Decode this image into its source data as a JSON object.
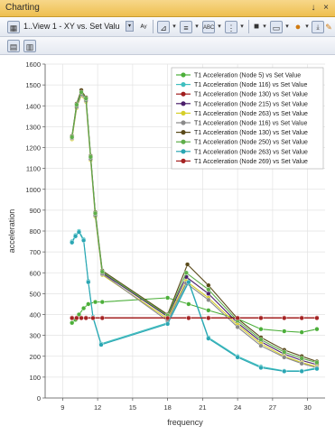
{
  "window": {
    "title": "Charting",
    "pin_glyph": "↓",
    "close_glyph": "×"
  },
  "toolbar": {
    "view_select_value": "1..View 1 - XY vs. Set Valu",
    "view_select_arrow": "▾"
  },
  "icons": [
    "chart-settings-icon",
    "view-select",
    "axis-format-icon",
    "series-icon",
    "label-icon",
    "grid-icon",
    "marker-icon",
    "frame-icon",
    "color-icon",
    "range-icon",
    "export-icon",
    "copy-chart-icon",
    "edit-chart-icon"
  ],
  "colors": {
    "green": "#4caf3a",
    "cyan": "#3fbfbf",
    "darkred": "#a11d1d",
    "purple": "#4b1f6b",
    "yellow": "#d6cf29",
    "gray": "#8a8a8a",
    "brown": "#5a4a1a",
    "lightgreen": "#5fae4a",
    "darkcyan": "#2aa6b3",
    "red": "#a52323"
  },
  "chart_data": {
    "type": "line",
    "xlabel": "frequency",
    "ylabel": "acceleration",
    "xlim": [
      7.5,
      31.5
    ],
    "ylim": [
      0,
      1600
    ],
    "xticks": [
      9,
      12,
      15,
      18,
      21,
      24,
      27,
      30
    ],
    "yticks": [
      0,
      100,
      200,
      300,
      400,
      500,
      600,
      700,
      800,
      900,
      1000,
      1100,
      1200,
      1300,
      1400,
      1500,
      1600
    ],
    "grid": true,
    "legend_position": "top-right",
    "series": [
      {
        "name": "T1 Acceleration (Node 5) vs Set Value",
        "color": "#4caf3a",
        "x": [
          9.8,
          10.1,
          10.4,
          10.8,
          11.2,
          11.8,
          12.4,
          18,
          19.8,
          21.5,
          24,
          26,
          28,
          29.5,
          30.8
        ],
        "y": [
          360,
          375,
          400,
          430,
          450,
          460,
          460,
          480,
          450,
          420,
          380,
          330,
          320,
          315,
          330
        ]
      },
      {
        "name": "T1 Acceleration (Node 116) vs Set Value",
        "color": "#3fbfbf",
        "x": [
          9.8,
          10.1,
          10.4,
          10.8,
          11.2,
          11.6,
          12.3,
          18,
          19.8,
          21.5,
          24,
          26,
          28,
          29.5,
          30.8
        ],
        "y": [
          750,
          780,
          800,
          760,
          560,
          390,
          260,
          360,
          560,
          290,
          200,
          150,
          130,
          130,
          145
        ]
      },
      {
        "name": "T1 Acceleration (Node 130) vs Set Value",
        "color": "#a11d1d",
        "x": [
          9.8,
          10.2,
          10.6,
          11,
          11.6,
          12.4,
          18,
          19.8,
          21.5,
          24,
          26,
          28,
          29.5,
          30.8
        ],
        "y": [
          385,
          385,
          385,
          385,
          385,
          385,
          385,
          385,
          385,
          385,
          385,
          385,
          385,
          385
        ]
      },
      {
        "name": "T1 Acceleration (Node 215) vs Set Value",
        "color": "#4b1f6b",
        "x": [
          9.8,
          10.2,
          10.6,
          11,
          11.4,
          11.8,
          12.4,
          18,
          19.6,
          21.5,
          24,
          26,
          28,
          29.5,
          30.8
        ],
        "y": [
          1250,
          1400,
          1460,
          1430,
          1150,
          880,
          600,
          390,
          580,
          500,
          360,
          270,
          210,
          180,
          160
        ]
      },
      {
        "name": "T1 Acceleration (Node 263) vs Set Value",
        "color": "#d6cf29",
        "x": [
          9.8,
          10.2,
          10.6,
          11,
          11.4,
          11.8,
          12.4,
          18,
          19.6,
          21.5,
          24,
          26,
          28,
          29.5,
          30.8
        ],
        "y": [
          1240,
          1390,
          1450,
          1420,
          1140,
          870,
          590,
          380,
          560,
          480,
          350,
          260,
          200,
          170,
          150
        ]
      },
      {
        "name": "T1 Acceleration (Node 116) vs Set Value",
        "color": "#8a8a8a",
        "x": [
          9.8,
          10.2,
          10.6,
          11,
          11.4,
          11.8,
          12.4,
          18,
          19.6,
          21.5,
          24,
          26,
          28,
          29.5,
          30.8
        ],
        "y": [
          1245,
          1395,
          1455,
          1425,
          1145,
          875,
          595,
          370,
          550,
          470,
          340,
          250,
          195,
          165,
          145
        ]
      },
      {
        "name": "T1 Acceleration (Node 130) vs Set Value",
        "color": "#5a4a1a",
        "x": [
          9.8,
          10.2,
          10.6,
          11,
          11.4,
          11.8,
          12.4,
          18,
          19.7,
          21.5,
          24,
          26,
          28,
          29.5,
          30.8
        ],
        "y": [
          1255,
          1410,
          1475,
          1440,
          1160,
          890,
          610,
          400,
          640,
          540,
          380,
          290,
          230,
          200,
          175
        ]
      },
      {
        "name": "T1 Acceleration (Node 250) vs Set Value",
        "color": "#5fae4a",
        "x": [
          9.8,
          10.2,
          10.6,
          11,
          11.4,
          11.8,
          12.4,
          18,
          19.6,
          21.5,
          24,
          26,
          28,
          29.5,
          30.8
        ],
        "y": [
          1250,
          1405,
          1465,
          1435,
          1155,
          885,
          605,
          395,
          600,
          520,
          370,
          280,
          220,
          190,
          170
        ]
      },
      {
        "name": "T1 Acceleration (Node 263) vs Set Value",
        "color": "#2aa6b3",
        "x": [
          9.8,
          10.1,
          10.4,
          10.8,
          11.2,
          11.6,
          12.3,
          18,
          19.8,
          21.5,
          24,
          26,
          28,
          29.5,
          30.8
        ],
        "y": [
          745,
          775,
          795,
          755,
          555,
          385,
          255,
          355,
          555,
          285,
          195,
          145,
          128,
          128,
          140
        ]
      },
      {
        "name": "T1 Acceleration (Node 269) vs Set Value",
        "color": "#a52323",
        "x": [
          9.8,
          10.2,
          10.6,
          11,
          11.6,
          12.4,
          18,
          19.8,
          21.5,
          24,
          26,
          28,
          29.5,
          30.8
        ],
        "y": [
          383,
          383,
          383,
          383,
          383,
          383,
          383,
          383,
          383,
          383,
          383,
          383,
          383,
          383
        ]
      }
    ]
  }
}
